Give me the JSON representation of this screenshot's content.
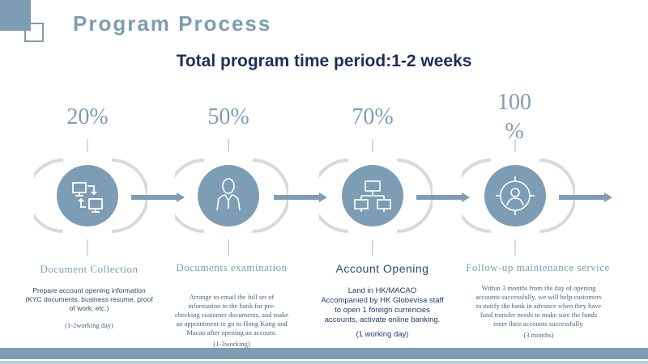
{
  "header": {
    "title": "Program Process"
  },
  "subtitle": "Total program time period:1-2 weeks",
  "colors": {
    "accent": "#7d9db4",
    "dark_text": "#1f2d5a",
    "ring": "#d9d9d9"
  },
  "steps": [
    {
      "percent": "20%",
      "icon": "document-transfer-icon",
      "title": "Document  Collection",
      "desc_lines": [
        "Prepare account opening information",
        "(KYC documents, business resume, proof",
        "of work, etc.)"
      ],
      "duration": "(1-2working day)"
    },
    {
      "percent": "50%",
      "icon": "person-icon",
      "title": "Documents examination",
      "desc_lines": [
        "Arrange to email the full set of",
        "information to the bank for pre-",
        "checking customer documents, and make",
        "an appointment to go to Hong Kong and",
        "Macao after opening an account."
      ],
      "duration": "(1-3working)"
    },
    {
      "percent": "70%",
      "icon": "network-computers-icon",
      "title": "Account Opening",
      "desc_lines": [
        "Land in HK/MACAO",
        "Accompanied by HK Globevisa staff",
        "to open 1 foreign currencies",
        "accounts, activate online banking."
      ],
      "duration": "(1 working day)"
    },
    {
      "percent_line1": "100",
      "percent_line2": "%",
      "icon": "user-target-icon",
      "title": "Follow-up maintenance service",
      "desc_lines": [
        "Within 3 months from the day of opening",
        "accounts successfully, we will help customers",
        "to notify the bank in advance when they have",
        "fund transfer needs to make sure the funds",
        "enter their accounts successfully."
      ],
      "duration": "(3 months)"
    }
  ]
}
